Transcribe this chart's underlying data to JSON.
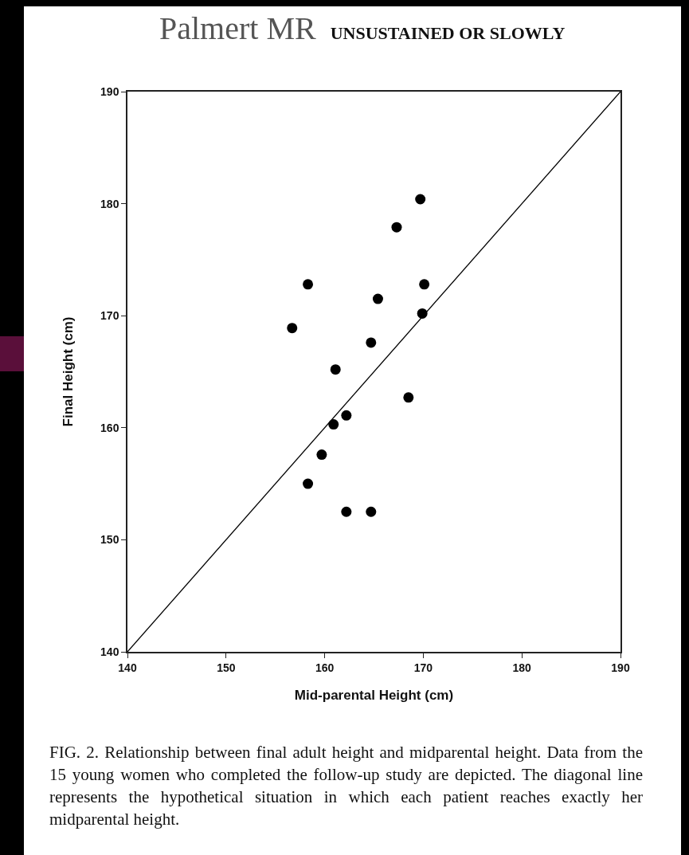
{
  "chart_data": {
    "type": "scatter",
    "title": "Palmert MR",
    "subtitle": "UNSUSTAINED OR SLOWLY",
    "xlabel": "Mid-parental Height (cm)",
    "ylabel": "Final Height (cm)",
    "x": [
      169.7,
      167.3,
      158.3,
      170.1,
      165.4,
      156.7,
      169.9,
      164.7,
      161.1,
      168.5,
      162.2,
      160.9,
      159.7,
      158.3,
      162.2,
      164.7
    ],
    "series": [
      {
        "color": "#000000",
        "marker": "circle",
        "values": [
          180.4,
          177.9,
          172.8,
          172.8,
          171.5,
          168.9,
          170.2,
          167.6,
          165.2,
          162.7,
          161.1,
          160.3,
          157.6,
          155.0,
          152.5,
          152.5
        ]
      },
      {
        "type": "line",
        "x": [
          140,
          190
        ],
        "color": "#000000",
        "marker": "none",
        "line_style": "solid",
        "values": [
          140,
          190
        ]
      }
    ],
    "xlim": [
      140,
      190
    ],
    "ylim": [
      140,
      190
    ],
    "xticks": [
      140,
      150,
      160,
      170,
      180,
      190
    ],
    "yticks": [
      140,
      150,
      160,
      170,
      180,
      190
    ],
    "grid": false,
    "annotations": [
      "FIG. 2. Relationship between final adult height and midparental height. Data from the 15 young women who completed the follow-up study are depicted. The diagonal line represents the hypothetical situation in which each patient reaches exactly her midparental height."
    ]
  }
}
